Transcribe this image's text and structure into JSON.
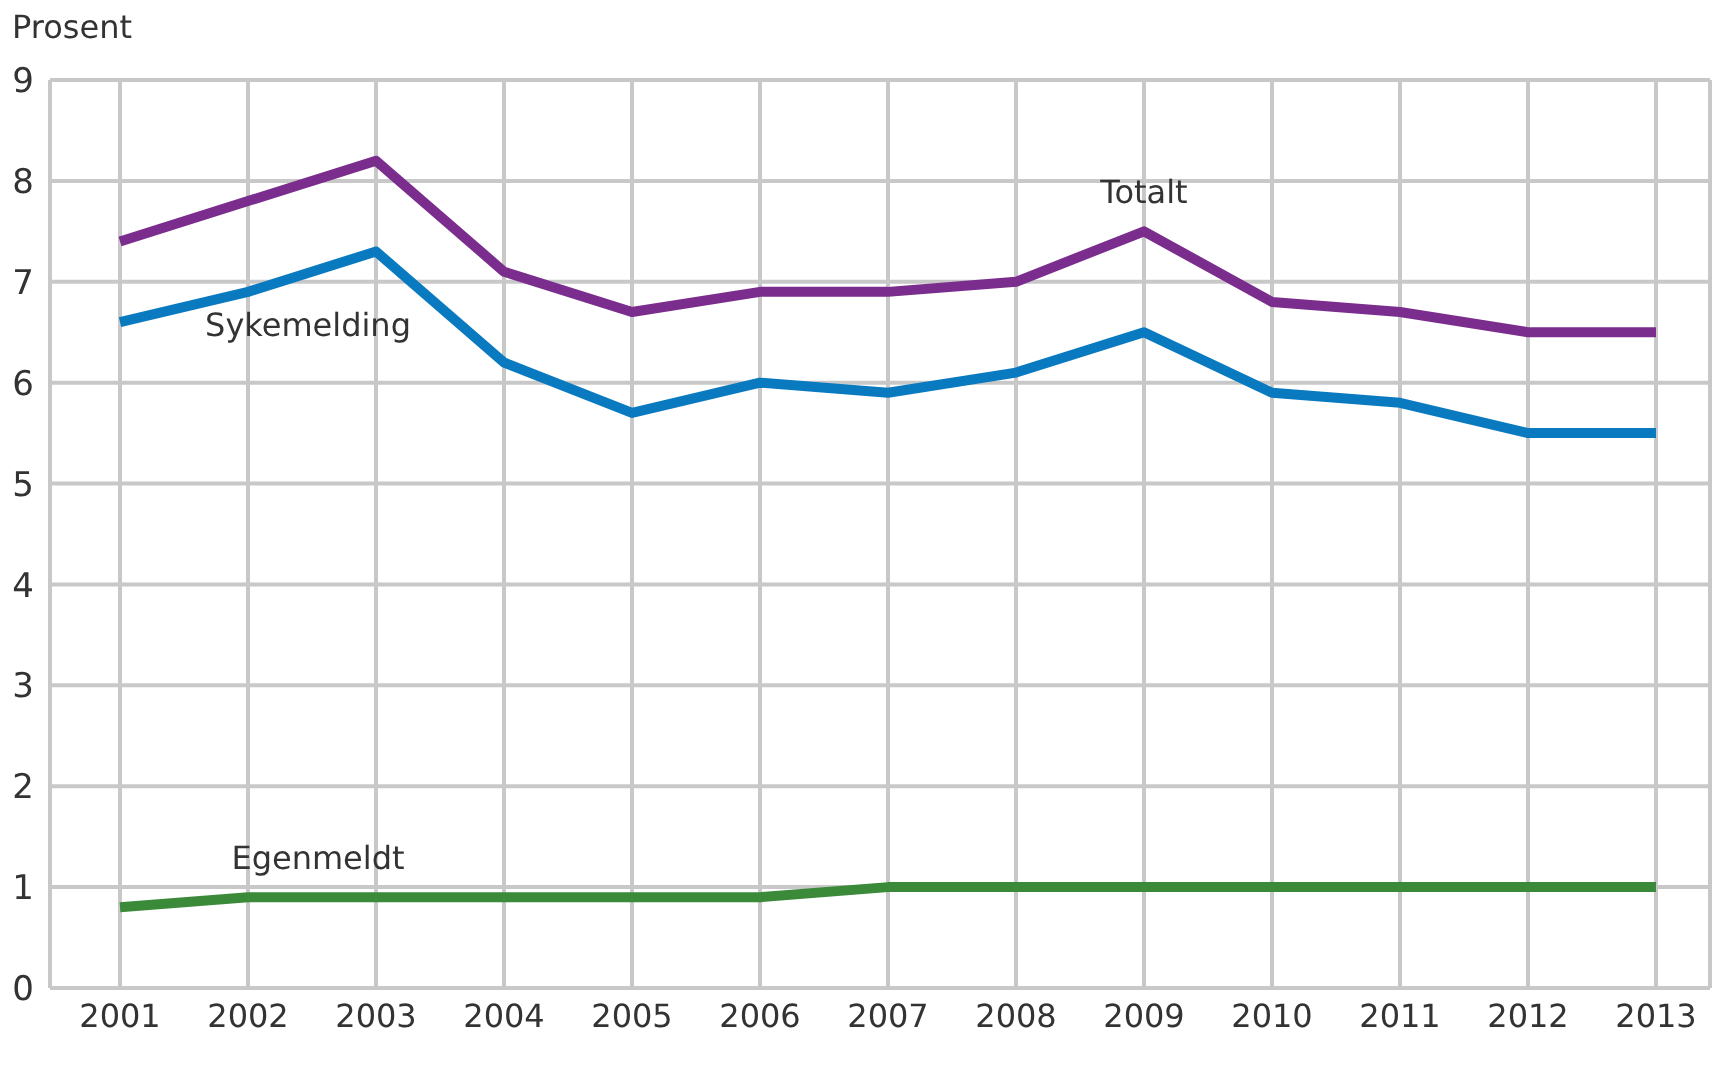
{
  "chart_data": {
    "type": "line",
    "ylabel": "Prosent",
    "categories": [
      "2001",
      "2002",
      "2003",
      "2004",
      "2005",
      "2006",
      "2007",
      "2008",
      "2009",
      "2010",
      "2011",
      "2012",
      "2013"
    ],
    "series": [
      {
        "name": "Totalt",
        "color": "#7b2d8e",
        "values": [
          7.4,
          7.8,
          8.2,
          7.1,
          6.7,
          6.9,
          6.9,
          7.0,
          7.5,
          6.8,
          6.7,
          6.5,
          6.5
        ]
      },
      {
        "name": "Sykemelding",
        "color": "#0a7ac0",
        "values": [
          6.6,
          6.9,
          7.3,
          6.2,
          5.7,
          6.0,
          5.9,
          6.1,
          6.5,
          5.9,
          5.8,
          5.5,
          5.5
        ]
      },
      {
        "name": "Egenmeldt",
        "color": "#3a8a3a",
        "values": [
          0.8,
          0.9,
          0.9,
          0.9,
          0.9,
          0.9,
          1.0,
          1.0,
          1.0,
          1.0,
          1.0,
          1.0,
          1.0
        ]
      }
    ],
    "ylim": [
      0,
      9
    ],
    "yticks": [
      0,
      1,
      2,
      3,
      4,
      5,
      6,
      7,
      8,
      9
    ],
    "grid": true,
    "marker": "none",
    "line_style": "solid"
  }
}
